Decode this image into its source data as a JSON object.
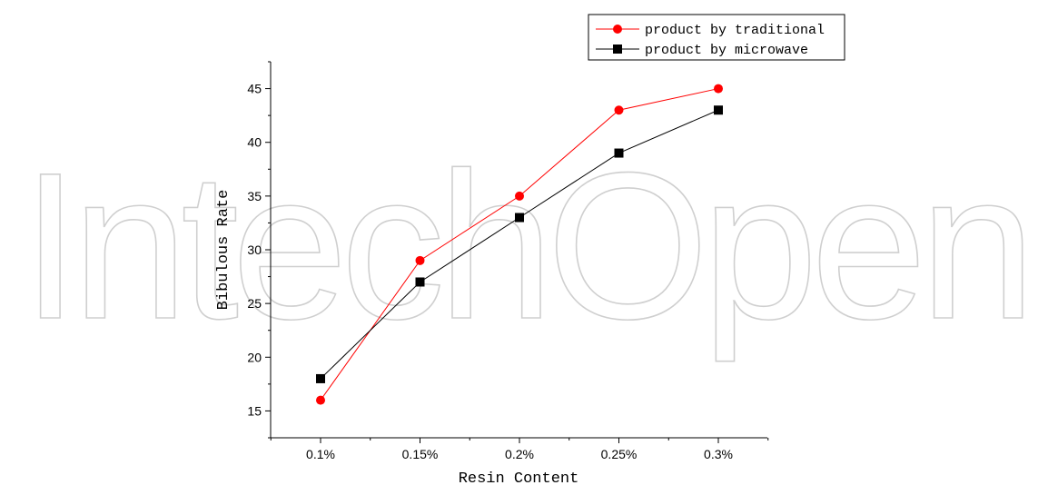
{
  "watermark": "IntechOpen",
  "chart_data": {
    "type": "line",
    "categories": [
      "0.1%",
      "0.15%",
      "0.2%",
      "0.25%",
      "0.3%"
    ],
    "series": [
      {
        "name": "product by traditional",
        "values": [
          16,
          29,
          35,
          43,
          45
        ],
        "color": "#ff0000",
        "marker": "circle"
      },
      {
        "name": "product by microwave",
        "values": [
          18,
          27,
          33,
          39,
          43
        ],
        "color": "#000000",
        "marker": "square"
      }
    ],
    "title": "",
    "xlabel": "Resin Content",
    "ylabel": "Bibulous Rate",
    "ylim": [
      12.5,
      47.5
    ],
    "yticks": [
      15,
      20,
      25,
      30,
      35,
      40,
      45
    ],
    "grid": false,
    "legend_position": "top-right"
  }
}
